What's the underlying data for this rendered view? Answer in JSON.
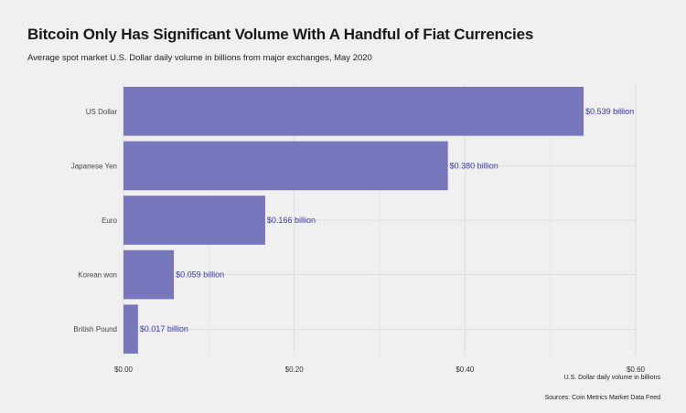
{
  "title": "Bitcoin Only Has Significant Volume With A Handful of Fiat Currencies",
  "subtitle": "Average spot market U.S. Dollar daily volume in billions from major exchanges, May 2020",
  "source": "Sources: Coin Metrics Market Data Feed",
  "chart_data": {
    "type": "bar",
    "orientation": "horizontal",
    "categories": [
      "US Dollar",
      "Japanese Yen",
      "Euro",
      "Korean won",
      "British Pound"
    ],
    "values": [
      0.539,
      0.38,
      0.166,
      0.059,
      0.017
    ],
    "data_labels": [
      "$0.539 billion",
      "$0.380 billion",
      "$0.166 billion",
      "$0.059 billion",
      "$0.017 billion"
    ],
    "xlabel": "U.S. Dollar daily volume in billions",
    "ylabel": "",
    "xlim": [
      0,
      0.6
    ],
    "x_ticks": [
      0,
      0.2,
      0.4,
      0.6
    ],
    "x_tick_labels": [
      "$0.00",
      "$0.20",
      "$0.40",
      "$0.60"
    ],
    "grid": true,
    "bar_color": "#7876bd",
    "label_color": "#3a36a8",
    "grid_color": "#dddddd"
  }
}
